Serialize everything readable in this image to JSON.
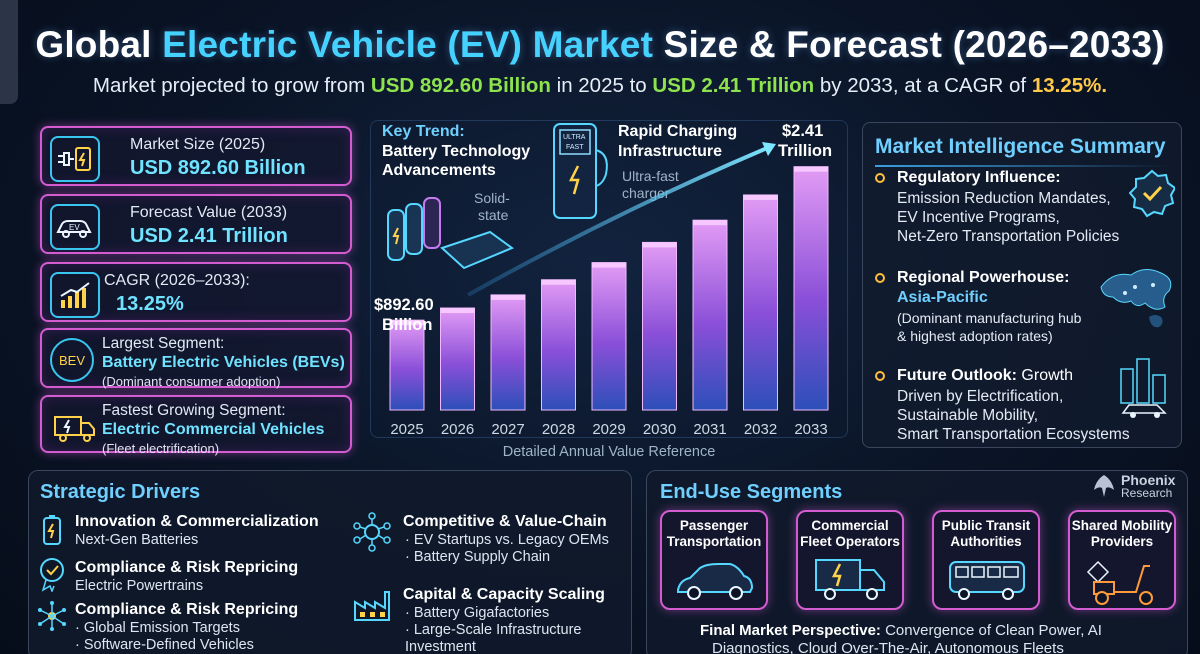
{
  "header": {
    "title_part1": "Global ",
    "title_highlight": "Electric Vehicle (EV) Market",
    "title_part2": " Size & Forecast (2026–2033)",
    "subtitle_part1": "Market projected to grow from ",
    "subtitle_value1": "USD 892.60 Billion",
    "subtitle_part2": " in 2025 to ",
    "subtitle_value2": "USD 2.41 Trillion",
    "subtitle_part3": " by 2033, at a CAGR of ",
    "subtitle_value3": "13.25%."
  },
  "kpis": [
    {
      "label": "Market Size (2025)",
      "value": "USD 892.60 Billion",
      "icon": "battery-plug-icon"
    },
    {
      "label": "Forecast Value (2033)",
      "value": "USD 2.41 Trillion",
      "icon": "ev-car-icon",
      "icon_text": "EV"
    },
    {
      "label": "CAGR (2026–2033):",
      "value": "13.25%",
      "icon": "growth-chart-icon"
    },
    {
      "label": "Largest Segment:",
      "value": "Battery Electric Vehicles (BEVs)",
      "note": "(Dominant consumer adoption)",
      "icon": "bev-icon",
      "icon_text": "BEV"
    },
    {
      "label": "Fastest Growing Segment:",
      "value": "Electric Commercial Vehicles",
      "note": "(Fleet electrification)",
      "icon": "electric-truck-icon"
    }
  ],
  "chart_annotations": {
    "key_trend_title": "Key Trend:",
    "key_trend_text": "Battery Technology",
    "key_trend_text2": "Advancements",
    "solid_state_1": "Solid-",
    "solid_state_2": "state",
    "rapid_title": "Rapid Charging",
    "rapid_title2": "Infrastructure",
    "ultra_fast_1": "Ultra-fast",
    "ultra_fast_2": "charger",
    "charger_sign_1": "ULTRA",
    "charger_sign_2": "FAST",
    "start_label_1": "$892.60",
    "start_label_2": "Billion",
    "end_label_1": "$2.41",
    "end_label_2": "Trillion",
    "caption": "Detailed Annual Value Reference"
  },
  "chart_data": {
    "type": "bar",
    "categories": [
      "2025",
      "2026",
      "2027",
      "2028",
      "2029",
      "2030",
      "2031",
      "2032",
      "2033"
    ],
    "values": [
      0.89,
      1.01,
      1.14,
      1.29,
      1.46,
      1.66,
      1.88,
      2.13,
      2.41
    ],
    "unit": "USD Trillion",
    "ylim": [
      0,
      2.6
    ],
    "labeled_points": {
      "2025": "$892.60 Billion",
      "2033": "$2.41 Trillion"
    },
    "bar_color": "#b45ee8",
    "grid": false
  },
  "intel": {
    "title": "Market Intelligence Summary",
    "items": [
      {
        "heading": "Regulatory Influence:",
        "lines": [
          "Emission Reduction Mandates,",
          "EV Incentive Programs,",
          "Net-Zero Transportation Policies"
        ],
        "icon": "badge-check-icon"
      },
      {
        "heading": "Regional Powerhouse:",
        "highlight": "Asia-Pacific",
        "lines": [
          "(Dominant manufacturing hub",
          "& highest adoption rates)"
        ],
        "icon": "asia-map-icon"
      },
      {
        "heading": "Future Outlook:",
        "heading_rest": " Growth",
        "lines": [
          "Driven by Electrification,",
          "Sustainable Mobility,",
          "Smart Transportation Ecosystems"
        ],
        "icon": "smart-city-icon"
      }
    ]
  },
  "drivers": {
    "title": "Strategic Drivers",
    "items": [
      {
        "heading": "Innovation & Commercialization",
        "lines": [
          "Next-Gen Batteries"
        ],
        "icon": "battery-icon"
      },
      {
        "heading": "Compliance & Risk Repricing",
        "lines": [
          "Electric Powertrains"
        ],
        "icon": "award-icon"
      },
      {
        "heading": "Compliance & Risk Repricing",
        "lines": [
          "· Global Emission Targets",
          "· Software-Defined Vehicles"
        ],
        "icon": "network-icon"
      },
      {
        "heading": "Competitive & Value-Chain",
        "lines": [
          "· EV Startups vs. Legacy OEMs",
          "· Battery Supply Chain"
        ],
        "icon": "hub-icon"
      },
      {
        "heading": "Capital & Capacity Scaling",
        "lines": [
          "· Battery Gigafactories",
          "· Large-Scale Infrastructure",
          "  Investment"
        ],
        "icon": "factory-icon"
      }
    ]
  },
  "segments": {
    "title": "End-Use Segments",
    "brand_1": "Phoenix",
    "brand_2": "Research",
    "cards": [
      {
        "label_1": "Passenger",
        "label_2": "Transportation",
        "icon": "passenger-car-icon"
      },
      {
        "label_1": "Commercial",
        "label_2": "Fleet Operators",
        "icon": "delivery-truck-icon"
      },
      {
        "label_1": "Public Transit",
        "label_2": "Authorities",
        "icon": "bus-icon"
      },
      {
        "label_1": "Shared Mobility",
        "label_2": "Providers",
        "icon": "scooter-icon"
      }
    ],
    "perspective_bold": "Final Market Perspective:",
    "perspective_text": " Convergence of Clean Power, AI",
    "perspective_text2": "Diagnostics, Cloud Over-The-Air, Autonomous Fleets"
  }
}
